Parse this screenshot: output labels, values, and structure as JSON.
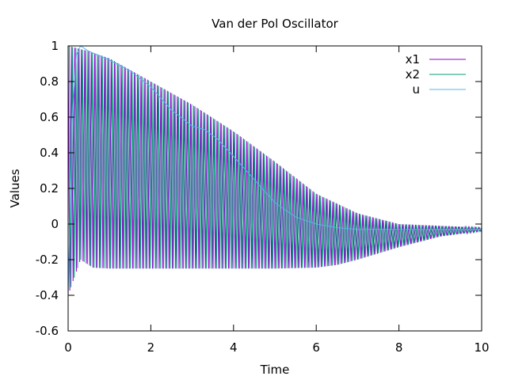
{
  "chart_data": {
    "type": "line",
    "title": "Van der Pol Oscillator",
    "xlabel": "Time",
    "ylabel": "Values",
    "xlim": [
      0,
      10
    ],
    "ylim": [
      -0.6,
      1
    ],
    "x_ticks": [
      0,
      2,
      4,
      6,
      8,
      10
    ],
    "x_tick_labels": [
      "0",
      "2",
      "4",
      "6",
      "8",
      "10"
    ],
    "y_ticks": [
      -0.6,
      -0.4,
      -0.2,
      0,
      0.2,
      0.4,
      0.6,
      0.8,
      1
    ],
    "y_tick_labels": [
      "-0.6",
      "-0.4",
      "-0.2",
      "0",
      "0.2",
      "0.4",
      "0.6",
      "0.8",
      "1"
    ],
    "grid": false,
    "legend_position": "top-right",
    "oscillation_period": 0.08,
    "series": [
      {
        "name": "x1",
        "color": "#9400d3",
        "role": "oscillating",
        "upper_envelope": [
          [
            0,
            1.0
          ],
          [
            0.5,
            0.97
          ],
          [
            1,
            0.93
          ],
          [
            2,
            0.8
          ],
          [
            3,
            0.67
          ],
          [
            4,
            0.52
          ],
          [
            5,
            0.35
          ],
          [
            6,
            0.17
          ],
          [
            7,
            0.06
          ],
          [
            8,
            0.0
          ],
          [
            9,
            -0.01
          ],
          [
            10,
            -0.02
          ]
        ],
        "lower_envelope": [
          [
            0,
            -0.4
          ],
          [
            0.3,
            -0.2
          ],
          [
            0.6,
            -0.245
          ],
          [
            1,
            -0.25
          ],
          [
            2,
            -0.25
          ],
          [
            3,
            -0.25
          ],
          [
            4,
            -0.25
          ],
          [
            5,
            -0.25
          ],
          [
            6,
            -0.245
          ],
          [
            6.5,
            -0.23
          ],
          [
            7,
            -0.2
          ],
          [
            8,
            -0.13
          ],
          [
            9,
            -0.07
          ],
          [
            10,
            -0.04
          ]
        ]
      },
      {
        "name": "x2",
        "color": "#009e73",
        "role": "oscillating",
        "upper_envelope": [
          [
            0,
            1.0
          ],
          [
            0.5,
            0.97
          ],
          [
            1,
            0.93
          ],
          [
            2,
            0.8
          ],
          [
            3,
            0.67
          ],
          [
            4,
            0.52
          ],
          [
            5,
            0.35
          ],
          [
            6,
            0.17
          ],
          [
            7,
            0.06
          ],
          [
            8,
            0.0
          ],
          [
            9,
            -0.01
          ],
          [
            10,
            -0.02
          ]
        ],
        "lower_envelope": [
          [
            0,
            -0.4
          ],
          [
            0.3,
            -0.2
          ],
          [
            0.6,
            -0.245
          ],
          [
            1,
            -0.25
          ],
          [
            2,
            -0.25
          ],
          [
            3,
            -0.25
          ],
          [
            4,
            -0.25
          ],
          [
            5,
            -0.25
          ],
          [
            6,
            -0.245
          ],
          [
            6.5,
            -0.23
          ],
          [
            7,
            -0.2
          ],
          [
            8,
            -0.13
          ],
          [
            9,
            -0.07
          ],
          [
            10,
            -0.04
          ]
        ]
      },
      {
        "name": "u",
        "color": "#56b4e9",
        "role": "smooth",
        "points": [
          [
            0,
            -0.4
          ],
          [
            0.1,
            0.6
          ],
          [
            0.2,
            0.95
          ],
          [
            0.3,
            1.0
          ],
          [
            0.5,
            0.97
          ],
          [
            1,
            0.92
          ],
          [
            1.5,
            0.86
          ],
          [
            2,
            0.77
          ],
          [
            2.5,
            0.64
          ],
          [
            3,
            0.55
          ],
          [
            3.3,
            0.53
          ],
          [
            3.6,
            0.48
          ],
          [
            4,
            0.38
          ],
          [
            4.5,
            0.25
          ],
          [
            5,
            0.12
          ],
          [
            5.5,
            0.04
          ],
          [
            6,
            0.0
          ],
          [
            6.5,
            -0.02
          ],
          [
            7,
            -0.03
          ],
          [
            8,
            -0.03
          ],
          [
            9,
            -0.03
          ],
          [
            10,
            -0.03
          ]
        ]
      }
    ]
  }
}
